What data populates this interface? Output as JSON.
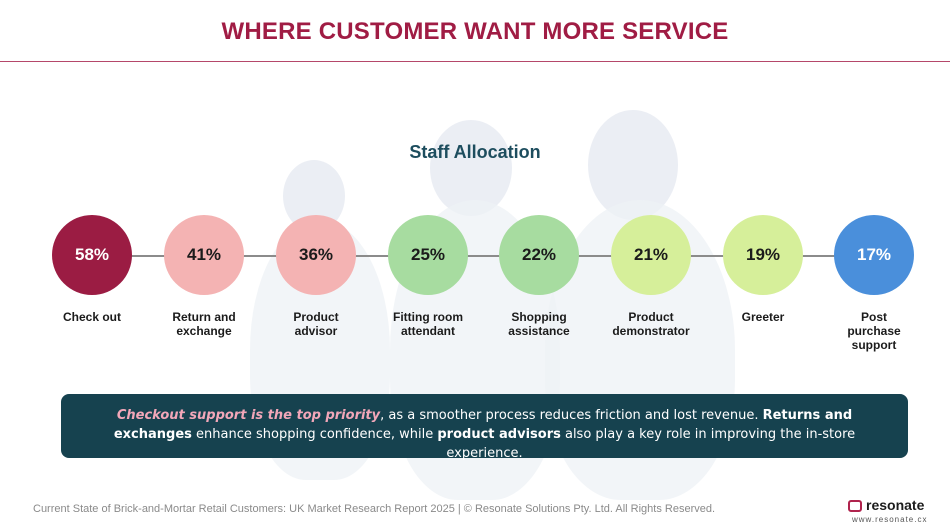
{
  "header": {
    "title": "WHERE CUSTOMER WANT MORE SERVICE"
  },
  "section": {
    "subtitle": "Staff Allocation"
  },
  "stats": [
    {
      "value": "58%",
      "label": "Check out",
      "color": "#9b1c43"
    },
    {
      "value": "41%",
      "label": "Return and exchange",
      "color": "#f4b3b3"
    },
    {
      "value": "36%",
      "label": "Product advisor",
      "color": "#f4b3b3"
    },
    {
      "value": "25%",
      "label": "Fitting room attendant",
      "color": "#a7dca0"
    },
    {
      "value": "22%",
      "label": "Shopping assistance",
      "color": "#a7dca0"
    },
    {
      "value": "21%",
      "label": "Product demonstrator",
      "color": "#d6ef9a"
    },
    {
      "value": "19%",
      "label": "Greeter",
      "color": "#d6ef9a"
    },
    {
      "value": "17%",
      "label": "Post purchase support",
      "color": "#4a8fdb"
    }
  ],
  "callout": {
    "part1": "Checkout support is the top priority",
    "part2": ", as a smoother process reduces friction and lost revenue. ",
    "part3": "Returns and exchanges",
    "part4": " enhance shopping confidence, while ",
    "part5": "product advisors",
    "part6": " also play a key role in improving the in-store experience."
  },
  "footer": {
    "text": "Current State of Brick-and-Mortar Retail Customers: UK Market Research Report 2025 | © Resonate Solutions Pty. Ltd. All Rights Reserved."
  },
  "brand": {
    "name": "resonate",
    "url": "www.resonate.cx"
  }
}
